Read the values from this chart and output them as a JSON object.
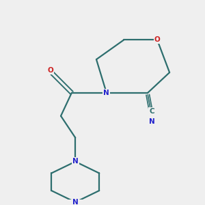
{
  "bg_color": "#efefef",
  "bond_color": "#2d6e6e",
  "N_color": "#2222cc",
  "O_color": "#cc2222",
  "lw": 1.6,
  "fs": 7.5,
  "figsize": [
    3.0,
    3.0
  ],
  "dpi": 100,
  "xlim": [
    0,
    10
  ],
  "ylim": [
    0,
    10
  ]
}
